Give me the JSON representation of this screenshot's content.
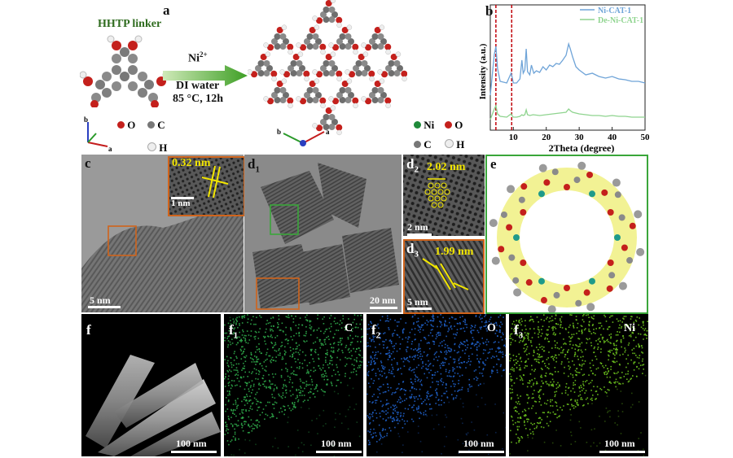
{
  "panel_a": {
    "label": "a",
    "linker_title": "HHTP linker",
    "reagent": "Ni",
    "reagent_sup": "2+",
    "condition1": "DI water",
    "condition2": "85 °C, 12h",
    "legend_left": [
      "O",
      "C",
      "H"
    ],
    "legend_right": [
      "Ni",
      "O",
      "C",
      "H"
    ],
    "axis_left": [
      "b",
      "a"
    ],
    "axis_right": [
      "b",
      "a"
    ]
  },
  "panel_b": {
    "label": "b",
    "ylabel": "Intensity (a.u.)",
    "xlabel": "2Theta (degree)",
    "xticks": [
      "10",
      "20",
      "30",
      "40",
      "50"
    ],
    "legend": [
      "Ni-CAT-1",
      "De-Ni-CAT-1"
    ]
  },
  "chart_data": {
    "type": "line",
    "xlabel": "2Theta (degree)",
    "ylabel": "Intensity (a.u.)",
    "xlim": [
      3,
      50
    ],
    "x_ticks": [
      10,
      20,
      30,
      40,
      50
    ],
    "y_ticks_shown": false,
    "reference_lines": [
      4.7,
      9.5
    ],
    "reference_line_color": "#c0000a",
    "legend_position": "top-right",
    "series": [
      {
        "name": "Ni-CAT-1",
        "color": "#6fa4d8",
        "x": [
          3,
          4.2,
          4.7,
          5.2,
          6,
          8,
          9.3,
          9.6,
          10,
          11,
          12,
          12.6,
          13,
          13.5,
          13.9,
          14.3,
          15,
          15.5,
          16.2,
          17,
          18,
          19,
          20,
          21,
          22,
          23,
          24,
          25,
          26,
          26.8,
          27.3,
          28,
          29,
          30,
          32,
          34,
          36,
          38,
          40,
          42,
          44,
          46,
          48,
          50
        ],
        "y": [
          0.35,
          0.85,
          0.95,
          0.68,
          0.52,
          0.5,
          0.62,
          0.58,
          0.5,
          0.5,
          0.55,
          0.78,
          0.62,
          0.66,
          0.92,
          0.64,
          0.6,
          0.72,
          0.62,
          0.65,
          0.63,
          0.7,
          0.66,
          0.72,
          0.7,
          0.74,
          0.73,
          0.78,
          0.84,
          0.98,
          0.92,
          0.82,
          0.7,
          0.66,
          0.6,
          0.62,
          0.58,
          0.56,
          0.58,
          0.55,
          0.54,
          0.52,
          0.52,
          0.5
        ]
      },
      {
        "name": "De-Ni-CAT-1",
        "color": "#8fd48f",
        "x": [
          3,
          4.2,
          4.7,
          5.2,
          6,
          8,
          9.3,
          9.6,
          10,
          11,
          12,
          12.6,
          13,
          13.5,
          13.9,
          14.3,
          15,
          16,
          18,
          20,
          22,
          24,
          26,
          26.8,
          27.3,
          28,
          30,
          32,
          34,
          36,
          38,
          40,
          42,
          44,
          46,
          48,
          50
        ],
        "y": [
          0.05,
          0.18,
          0.22,
          0.12,
          0.09,
          0.08,
          0.12,
          0.1,
          0.08,
          0.08,
          0.09,
          0.11,
          0.1,
          0.11,
          0.17,
          0.11,
          0.1,
          0.11,
          0.1,
          0.11,
          0.12,
          0.13,
          0.14,
          0.18,
          0.16,
          0.14,
          0.12,
          0.11,
          0.1,
          0.1,
          0.09,
          0.1,
          0.09,
          0.09,
          0.08,
          0.08,
          0.08
        ]
      }
    ]
  },
  "panel_c": {
    "label": "c",
    "scale": "5 nm",
    "inset_scale": "1 nm",
    "spacing": "0.32 nm"
  },
  "panel_d1": {
    "label": "d",
    "sub": "1",
    "scale": "20 nm"
  },
  "panel_d2": {
    "label": "d",
    "sub": "2",
    "scale": "2 nm",
    "spacing": "2.02 nm"
  },
  "panel_d3": {
    "label": "d",
    "sub": "3",
    "scale": "5 nm",
    "spacing": "1.99 nm"
  },
  "panel_e": {
    "label": "e"
  },
  "panel_f": {
    "label": "f",
    "scale": "100 nm"
  },
  "panel_f1": {
    "label": "f",
    "sub": "1",
    "element": "C",
    "scale": "100 nm",
    "color": "#2fa84a"
  },
  "panel_f2": {
    "label": "f",
    "sub": "2",
    "element": "O",
    "scale": "100 nm",
    "color": "#1f5fc8"
  },
  "panel_f3": {
    "label": "f",
    "sub": "3",
    "element": "Ni",
    "scale": "100 nm",
    "color": "#6bc21e"
  }
}
